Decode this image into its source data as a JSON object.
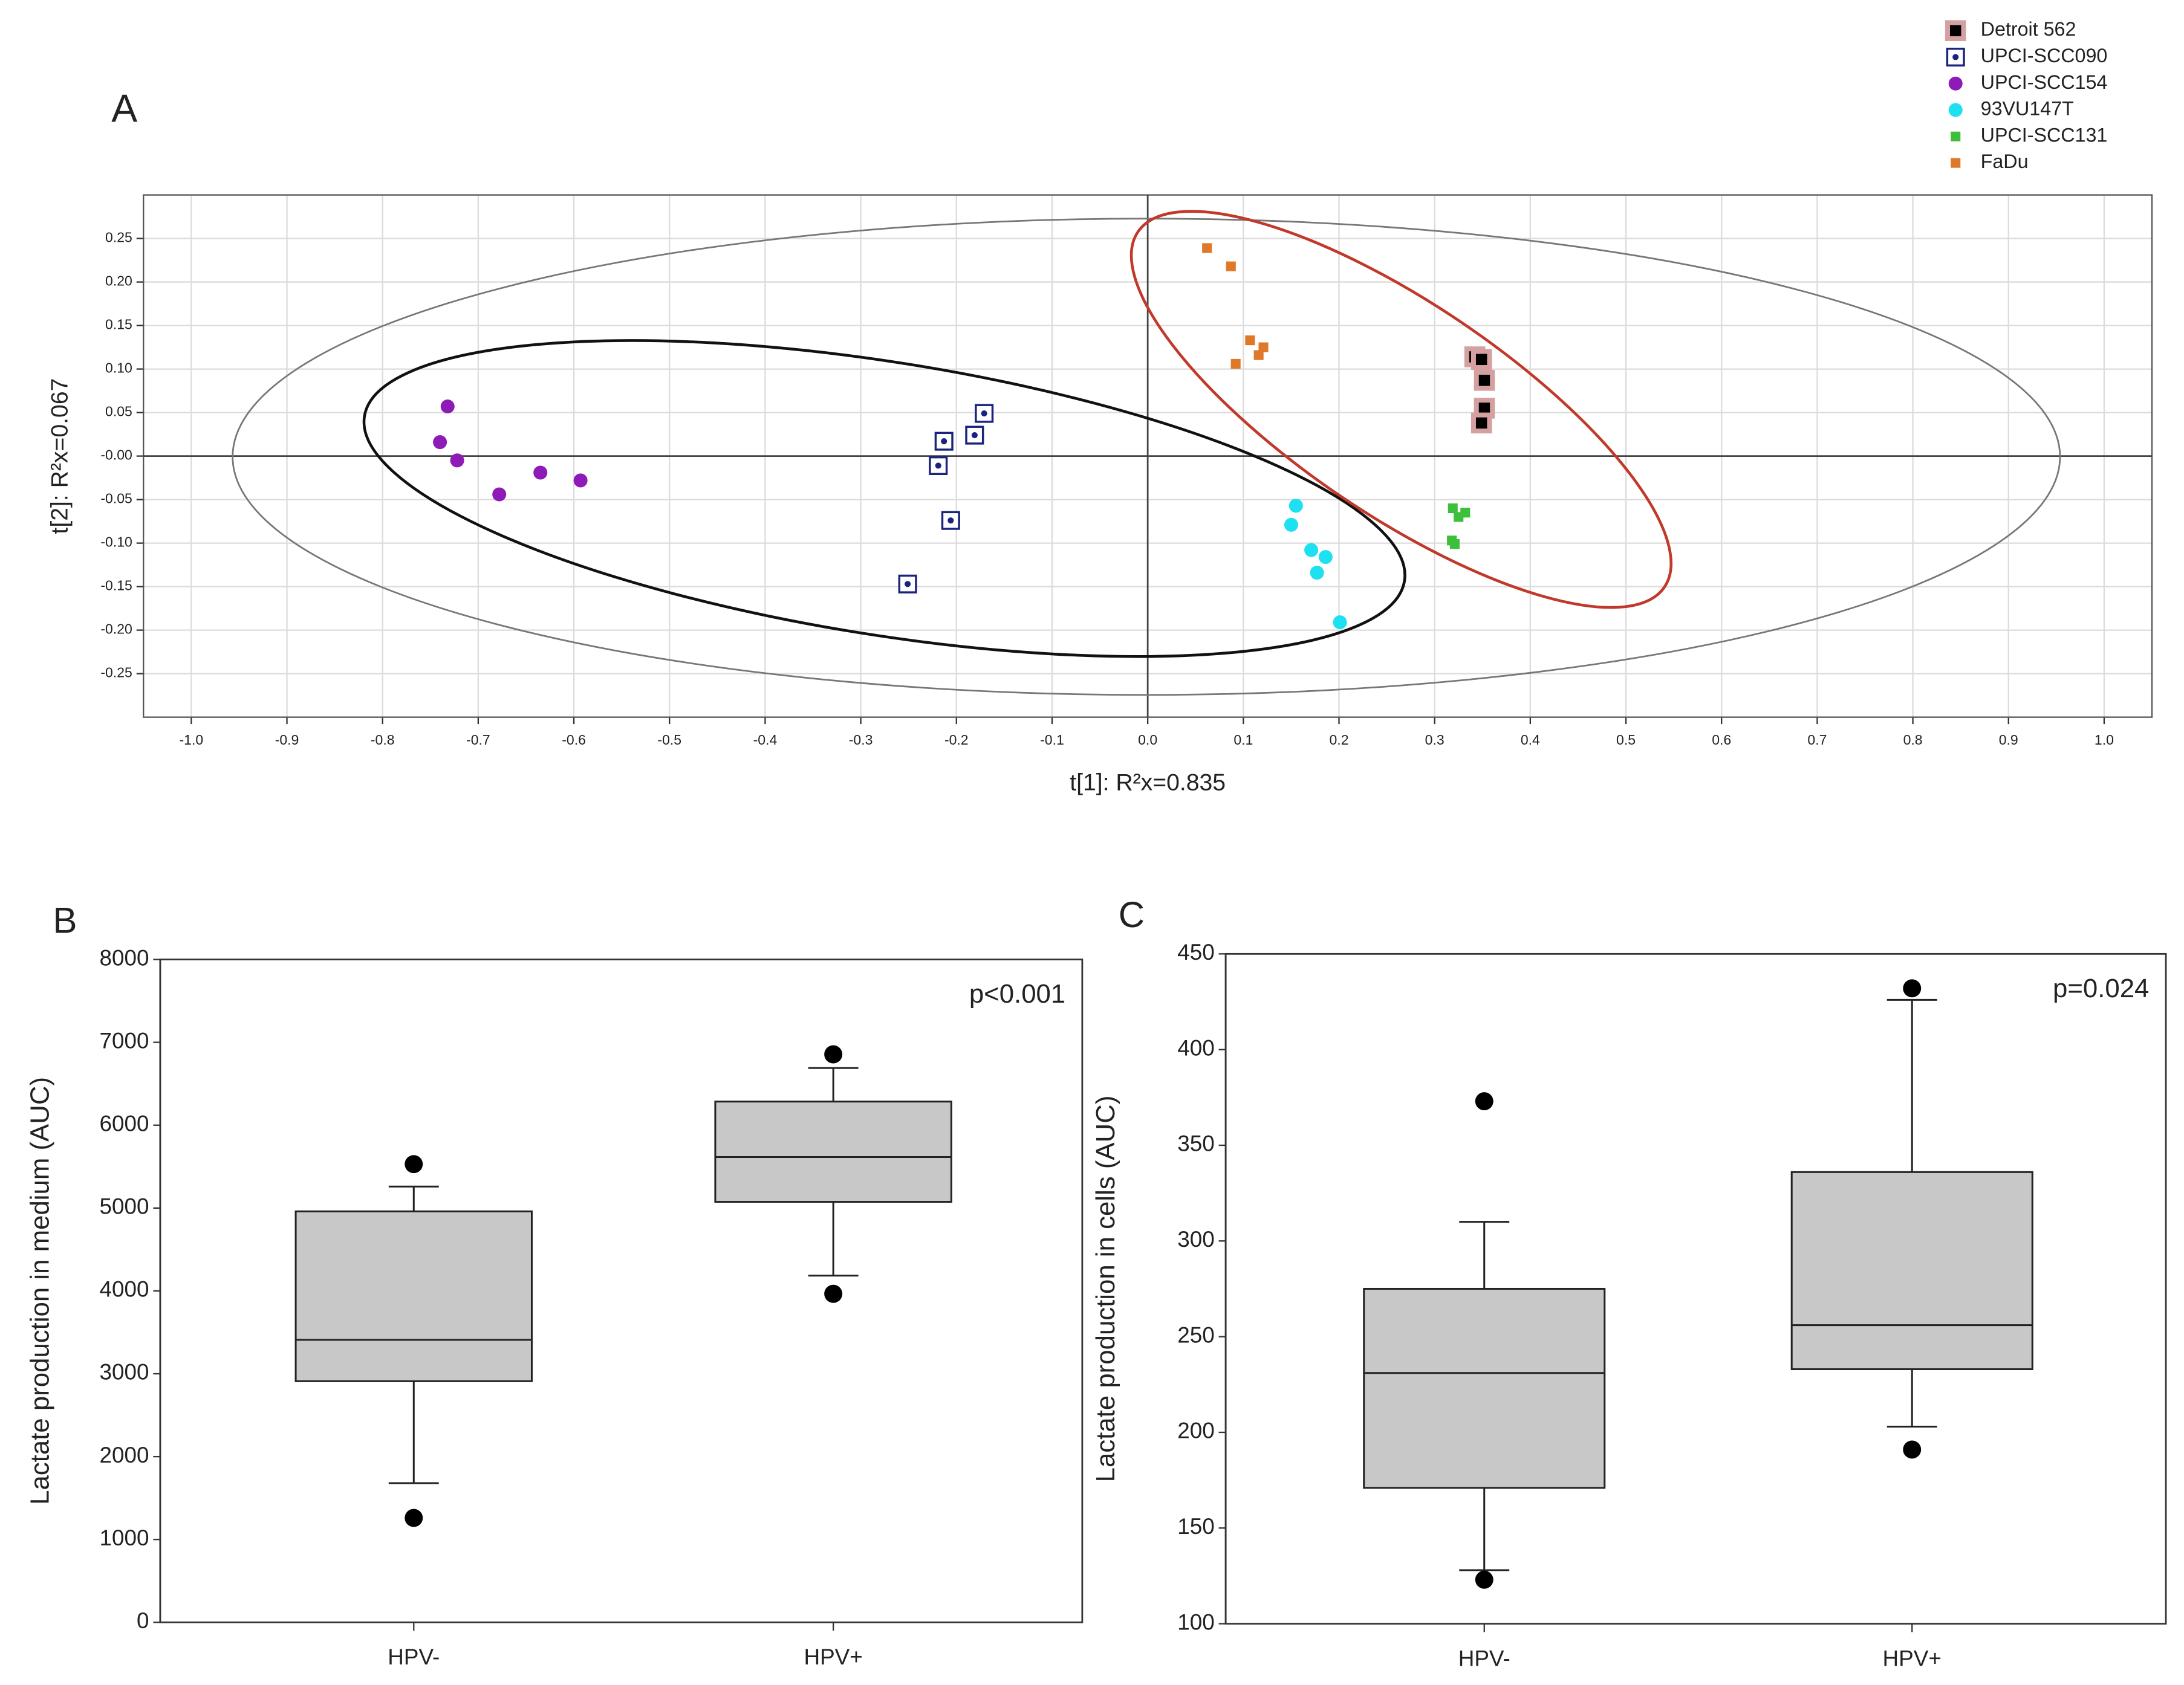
{
  "chart_data": [
    {
      "type": "scatter",
      "panel_label": "A",
      "xlabel": "t[1]: R²x=0.835",
      "ylabel": "t[2]: R²x=0.067",
      "xlim": [
        -1.05,
        1.05
      ],
      "ylim": [
        -0.3,
        0.3
      ],
      "xticks": [
        {
          "value": -1,
          "label": "-1.0"
        },
        -0.9,
        -0.8,
        -0.7,
        -0.6,
        -0.5,
        -0.4,
        -0.3,
        -0.2,
        -0.1,
        {
          "value": 0,
          "label": "0.0"
        },
        0.1,
        0.2,
        0.3,
        0.4,
        0.5,
        0.6,
        0.7,
        0.8,
        0.9,
        {
          "value": 1,
          "label": "1.0"
        }
      ],
      "yticks": [
        {
          "value": 0.25,
          "label": "0.25"
        },
        {
          "value": 0.2,
          "label": "0.20"
        },
        0.15,
        {
          "value": 0.1,
          "label": "0.10"
        },
        0.05,
        {
          "value": 0,
          "label": "-0.00"
        },
        -0.05,
        {
          "value": -0.1,
          "label": "-0.10"
        },
        -0.15,
        {
          "value": -0.2,
          "label": "-0.20"
        },
        -0.25
      ],
      "grid": true,
      "legend": "upper right",
      "series": [
        {
          "name": "Detroit 562",
          "color": "#000000",
          "edge_color": "#d4a0a0",
          "marker": "framed-square",
          "x": [
            0.342,
            0.349,
            0.352,
            0.352,
            0.349
          ],
          "values": [
            0.114,
            0.111,
            0.087,
            0.055,
            0.038
          ]
        },
        {
          "name": "UPCI-SCC090",
          "color": "#1a237e",
          "marker": "boxed-dot",
          "x": [
            -0.171,
            -0.181,
            -0.213,
            -0.219,
            -0.206,
            -0.251
          ],
          "values": [
            0.049,
            0.024,
            0.017,
            -0.011,
            -0.074,
            -0.147
          ]
        },
        {
          "name": "UPCI-SCC154",
          "color": "#8e1ab8",
          "marker": "circle",
          "x": [
            -0.732,
            -0.74,
            -0.722,
            -0.678,
            -0.635,
            -0.593
          ],
          "values": [
            0.057,
            0.016,
            -0.005,
            -0.044,
            -0.019,
            -0.028
          ]
        },
        {
          "name": "93VU147T",
          "color": "#1de0f0",
          "marker": "circle",
          "x": [
            0.155,
            0.15,
            0.171,
            0.186,
            0.177,
            0.201
          ],
          "values": [
            -0.057,
            -0.079,
            -0.108,
            -0.116,
            -0.134,
            -0.191
          ]
        },
        {
          "name": "UPCI-SCC131",
          "color": "#3cc03c",
          "marker": "square",
          "x": [
            0.319,
            0.332,
            0.325,
            0.318,
            0.321
          ],
          "values": [
            -0.06,
            -0.065,
            -0.07,
            -0.097,
            -0.101
          ]
        },
        {
          "name": "FaDu",
          "color": "#e0782a",
          "marker": "square",
          "x": [
            0.062,
            0.087,
            0.107,
            0.121,
            0.116,
            0.092
          ],
          "values": [
            0.239,
            0.218,
            0.133,
            0.125,
            0.116,
            0.106
          ]
        }
      ]
    },
    {
      "type": "box",
      "panel_label": "B",
      "ylabel": "Lactate production in medium (AUC)",
      "annotation": "p<0.001",
      "categories": [
        "HPV-",
        "HPV+"
      ],
      "color": "#c8c8c8",
      "ylim": [
        0,
        8000
      ],
      "yticks": [
        0,
        1000,
        2000,
        3000,
        4000,
        5000,
        6000,
        7000,
        8000
      ],
      "boxes": [
        {
          "whisker_low": 1680,
          "q1": 2910,
          "median": 3410,
          "q3": 4960,
          "whisker_high": 5260,
          "outliers": [
            5530,
            1260
          ]
        },
        {
          "whisker_low": 4185,
          "q1": 5075,
          "median": 5615,
          "q3": 6285,
          "whisker_high": 6690,
          "outliers": [
            6855,
            3965
          ]
        }
      ]
    },
    {
      "type": "box",
      "panel_label": "C",
      "ylabel": "Lactate production in cells (AUC)",
      "annotation": "p=0.024",
      "categories": [
        "HPV-",
        "HPV+"
      ],
      "color": "#c8c8c8",
      "ylim": [
        100,
        450
      ],
      "yticks": [
        100,
        150,
        200,
        250,
        300,
        350,
        400,
        450
      ],
      "boxes": [
        {
          "whisker_low": 128,
          "q1": 171,
          "median": 231,
          "q3": 275,
          "whisker_high": 310,
          "outliers": [
            373,
            123
          ]
        },
        {
          "whisker_low": 203,
          "q1": 233,
          "median": 256,
          "q3": 336,
          "whisker_high": 426,
          "outliers": [
            432,
            191
          ]
        }
      ]
    }
  ]
}
